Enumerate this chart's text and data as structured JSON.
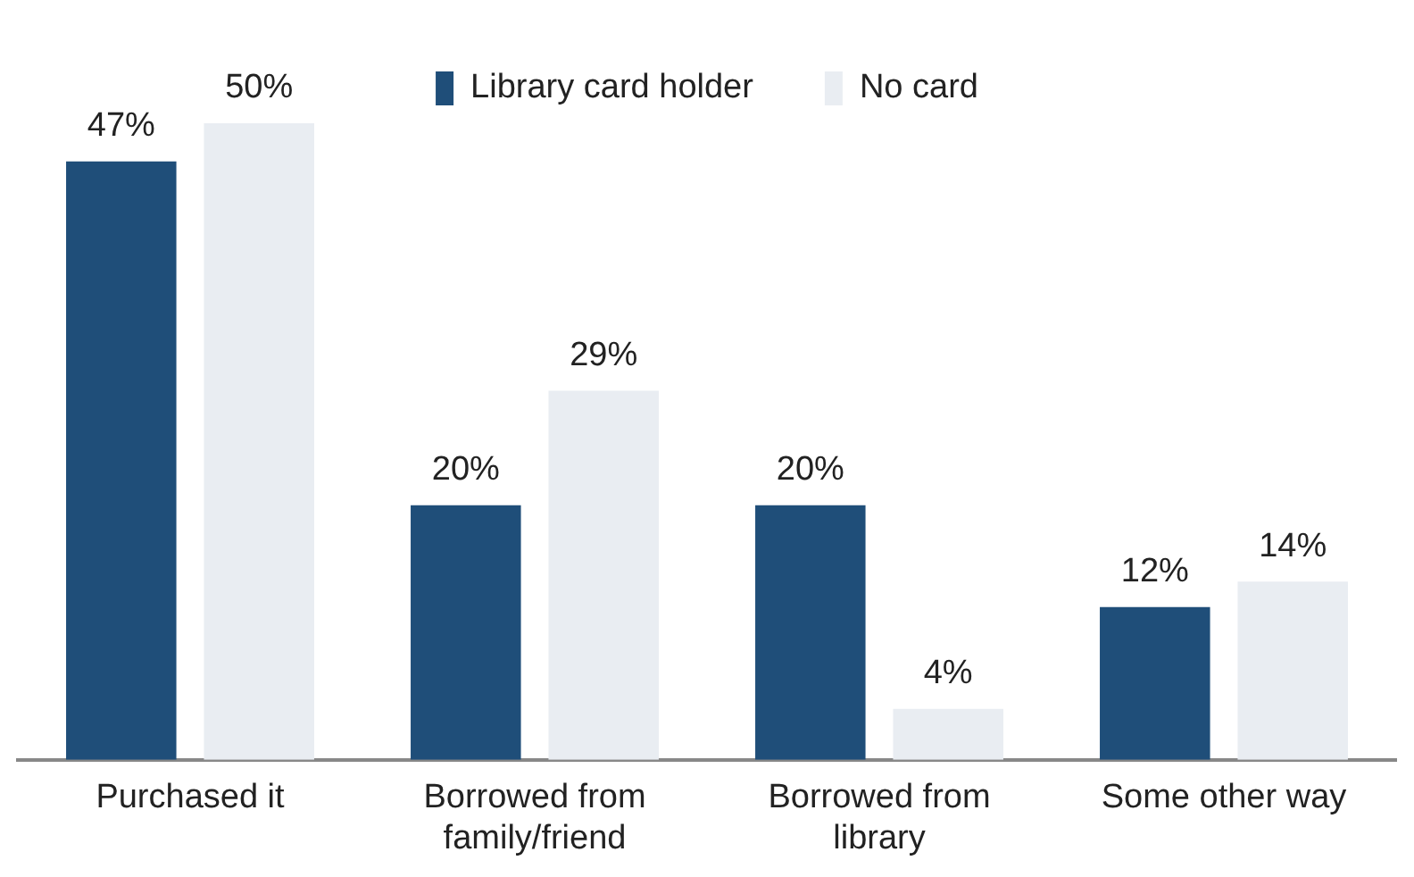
{
  "chart_data": {
    "type": "bar",
    "categories": [
      "Purchased it",
      "Borrowed from family/friend",
      "Borrowed from library",
      "Some other way"
    ],
    "series": [
      {
        "name": "Library card holder",
        "color": "#1f4e79",
        "values": [
          47,
          20,
          20,
          12
        ],
        "value_labels": [
          "47%",
          "20%",
          "20%",
          "12%"
        ]
      },
      {
        "name": "No card",
        "color": "#e9edf2",
        "values": [
          50,
          29,
          4,
          14
        ],
        "value_labels": [
          "50%",
          "29%",
          "4%",
          "14%"
        ]
      }
    ],
    "legend": "top"
  }
}
